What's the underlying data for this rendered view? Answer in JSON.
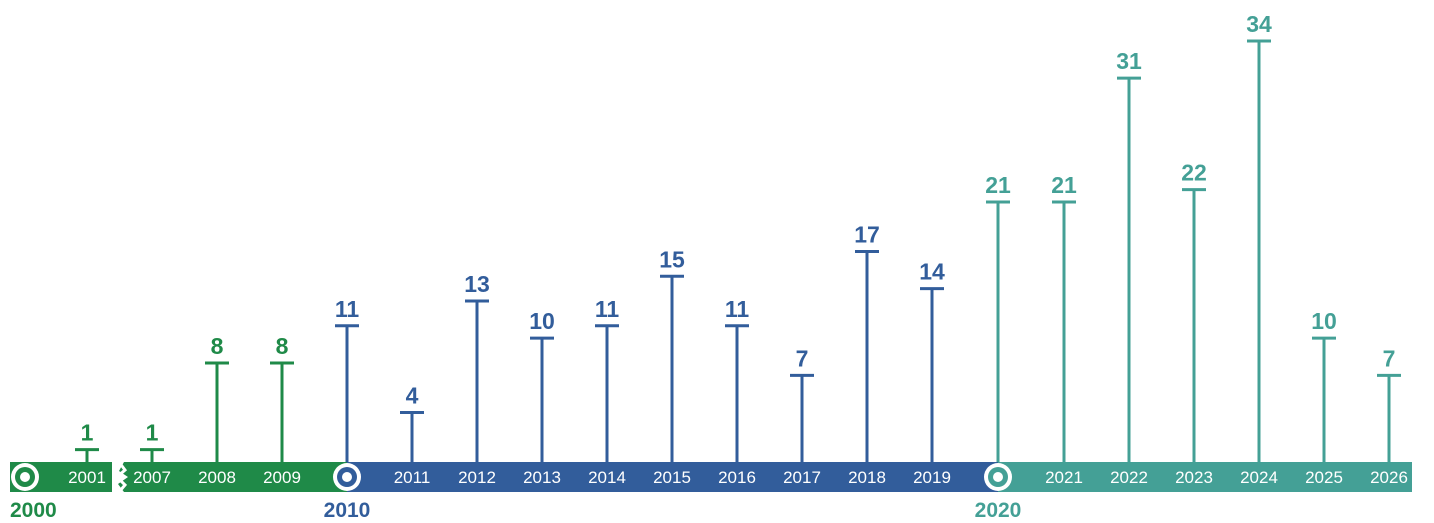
{
  "chart_data": {
    "type": "bar",
    "title": "",
    "xlabel": "",
    "ylabel": "",
    "ylim": [
      0,
      34
    ],
    "grid": false,
    "categories": [
      "2001",
      "2007",
      "2008",
      "2009",
      "2010",
      "2011",
      "2012",
      "2013",
      "2014",
      "2015",
      "2016",
      "2017",
      "2018",
      "2019",
      "2020",
      "2021",
      "2022",
      "2023",
      "2024",
      "2025",
      "2026"
    ],
    "values": [
      1,
      1,
      8,
      8,
      11,
      4,
      13,
      10,
      11,
      15,
      11,
      7,
      17,
      14,
      21,
      21,
      31,
      22,
      34,
      10,
      7
    ],
    "decade_markers": [
      "2000",
      "2010",
      "2020"
    ],
    "axis_break_between": [
      "2001",
      "2007"
    ],
    "colors": {
      "2000s": "#1f8a48",
      "2010s": "#325d9b",
      "2020s": "#44a096"
    }
  }
}
